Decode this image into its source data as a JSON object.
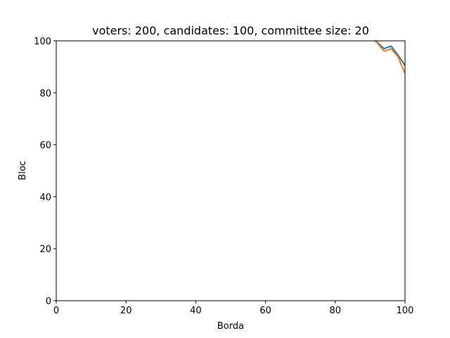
{
  "chart_data": {
    "type": "line",
    "title": "voters: 200, candidates: 100, committee size: 20",
    "xlabel": "Borda",
    "ylabel": "Bloc",
    "xlim": [
      0,
      100
    ],
    "ylim": [
      0,
      100
    ],
    "xticks": [
      "0",
      "20",
      "40",
      "60",
      "80",
      "100"
    ],
    "yticks": [
      "0",
      "20",
      "40",
      "60",
      "80",
      "100"
    ],
    "grid": false,
    "series": [
      {
        "color": "#1f77b4",
        "x": [
          90,
          92,
          94,
          96,
          98,
          100
        ],
        "y": [
          101.5,
          99.5,
          97,
          98,
          94.5,
          90.5
        ]
      },
      {
        "color": "#ff7f0e",
        "x": [
          90,
          92,
          94,
          96,
          98,
          100
        ],
        "y": [
          101.5,
          99.2,
          96,
          97,
          93.8,
          87.5
        ]
      }
    ]
  }
}
